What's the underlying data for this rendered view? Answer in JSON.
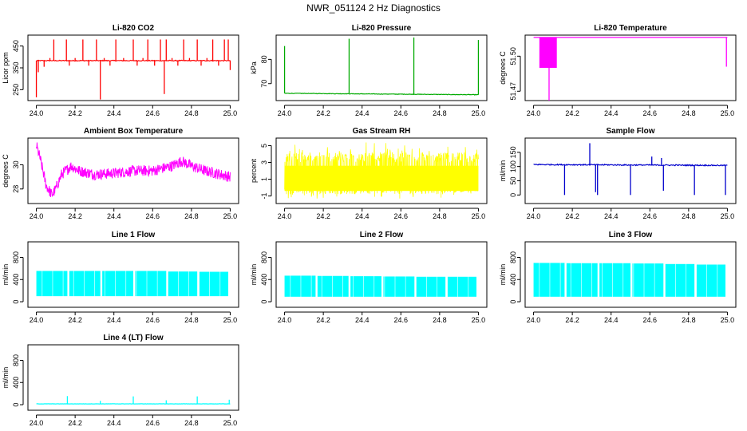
{
  "figure": {
    "title": "NWR_051124  2 Hz Diagnostics"
  },
  "chart_data": [
    {
      "id": "co2",
      "type": "line",
      "title": "Li-820 CO2",
      "ylabel": "Licor ppm",
      "xlim": [
        24.0,
        25.0
      ],
      "xticks": [
        24.0,
        24.2,
        24.4,
        24.6,
        24.8,
        25.0
      ],
      "ylim": [
        200,
        500
      ],
      "yticks": [
        250,
        350,
        450
      ],
      "color": "#ff0000",
      "baseline": 383,
      "noise": 2,
      "spikes": [
        {
          "x": 24.0,
          "v": 215
        },
        {
          "x": 24.01,
          "v": 330
        },
        {
          "x": 24.04,
          "v": 355
        },
        {
          "x": 24.07,
          "v": 395
        },
        {
          "x": 24.09,
          "v": 480
        },
        {
          "x": 24.155,
          "v": 480
        },
        {
          "x": 24.17,
          "v": 360
        },
        {
          "x": 24.2,
          "v": 395
        },
        {
          "x": 24.24,
          "v": 480
        },
        {
          "x": 24.27,
          "v": 360
        },
        {
          "x": 24.31,
          "v": 480
        },
        {
          "x": 24.33,
          "v": 205
        },
        {
          "x": 24.35,
          "v": 395
        },
        {
          "x": 24.38,
          "v": 360
        },
        {
          "x": 24.41,
          "v": 480
        },
        {
          "x": 24.45,
          "v": 395
        },
        {
          "x": 24.5,
          "v": 480
        },
        {
          "x": 24.52,
          "v": 360
        },
        {
          "x": 24.55,
          "v": 395
        },
        {
          "x": 24.575,
          "v": 480
        },
        {
          "x": 24.61,
          "v": 360
        },
        {
          "x": 24.64,
          "v": 480
        },
        {
          "x": 24.66,
          "v": 230
        },
        {
          "x": 24.67,
          "v": 480
        },
        {
          "x": 24.7,
          "v": 395
        },
        {
          "x": 24.73,
          "v": 360
        },
        {
          "x": 24.76,
          "v": 480
        },
        {
          "x": 24.79,
          "v": 395
        },
        {
          "x": 24.83,
          "v": 480
        },
        {
          "x": 24.85,
          "v": 360
        },
        {
          "x": 24.88,
          "v": 395
        },
        {
          "x": 24.91,
          "v": 480
        },
        {
          "x": 24.94,
          "v": 360
        },
        {
          "x": 24.97,
          "v": 480
        },
        {
          "x": 24.99,
          "v": 480
        },
        {
          "x": 25.0,
          "v": 340
        }
      ]
    },
    {
      "id": "pressure",
      "type": "line",
      "title": "Li-820 Pressure",
      "ylabel": "kPa",
      "xlim": [
        24.0,
        25.0
      ],
      "xticks": [
        24.0,
        24.2,
        24.4,
        24.6,
        24.8,
        25.0
      ],
      "ylim": [
        63,
        90
      ],
      "yticks": [
        70,
        80
      ],
      "color": "#00aa00",
      "baseline": 66.0,
      "baseline_end": 65.4,
      "noise": 0.1,
      "spikes": [
        {
          "x": 24.0,
          "v": 85.5
        },
        {
          "x": 24.333,
          "v": 88.5
        },
        {
          "x": 24.667,
          "v": 89.0
        },
        {
          "x": 25.0,
          "v": 88.0
        }
      ]
    },
    {
      "id": "temperature",
      "type": "line",
      "title": "Li-820 Temperature",
      "ylabel": "degrees C",
      "xlim": [
        24.0,
        25.0
      ],
      "xticks": [
        24.0,
        24.2,
        24.4,
        24.6,
        24.8,
        25.0
      ],
      "ylim": [
        51.462,
        51.518
      ],
      "yticks": [
        51.47,
        51.5
      ],
      "ytick_labels": [
        "51.47",
        "51.50"
      ],
      "color": "#ff00ff",
      "baseline": 51.516,
      "block": {
        "x0": 24.03,
        "x1": 24.12,
        "v0": 51.49,
        "v1": 51.516
      },
      "spikes": [
        {
          "x": 24.08,
          "v": 51.462
        },
        {
          "x": 24.995,
          "v": 51.491
        }
      ]
    },
    {
      "id": "box_temp",
      "type": "line",
      "title": "Ambient Box Temperature",
      "ylabel": "degrees C",
      "xlim": [
        24.0,
        25.0
      ],
      "xticks": [
        24.0,
        24.2,
        24.4,
        24.6,
        24.8,
        25.0
      ],
      "ylim": [
        26.8,
        32.2
      ],
      "yticks": [
        28,
        30
      ],
      "color": "#ff00ff",
      "curve": [
        [
          24.0,
          31.6
        ],
        [
          24.02,
          30.5
        ],
        [
          24.05,
          28.3
        ],
        [
          24.08,
          27.5
        ],
        [
          24.1,
          28.0
        ],
        [
          24.13,
          29.2
        ],
        [
          24.18,
          29.9
        ],
        [
          24.22,
          29.5
        ],
        [
          24.3,
          29.2
        ],
        [
          24.4,
          29.3
        ],
        [
          24.5,
          29.5
        ],
        [
          24.6,
          29.5
        ],
        [
          24.7,
          29.9
        ],
        [
          24.75,
          30.3
        ],
        [
          24.8,
          29.9
        ],
        [
          24.87,
          29.5
        ],
        [
          24.95,
          29.2
        ],
        [
          25.0,
          29.0
        ]
      ],
      "noise": 0.45
    },
    {
      "id": "rh",
      "type": "line",
      "title": "Gas Stream RH",
      "ylabel": "percent",
      "xlim": [
        24.0,
        25.0
      ],
      "xticks": [
        24.0,
        24.2,
        24.4,
        24.6,
        24.8,
        25.0
      ],
      "ylim": [
        -1.9,
        5.9
      ],
      "yticks": [
        -1,
        1,
        3,
        5
      ],
      "color": "#ffff00",
      "band": {
        "lo": -0.8,
        "hi": 4.2,
        "lo_min": -1.3,
        "hi_max": 5.6
      }
    },
    {
      "id": "sample_flow",
      "type": "line",
      "title": "Sample Flow",
      "ylabel": "ml/min",
      "xlim": [
        24.0,
        25.0
      ],
      "xticks": [
        24.0,
        24.2,
        24.4,
        24.6,
        24.8,
        25.0
      ],
      "ylim": [
        -30,
        200
      ],
      "yticks": [
        0,
        50,
        100,
        150
      ],
      "color": "#0000cc",
      "baseline": 107,
      "baseline_end": 104,
      "noise": 2,
      "spikes": [
        {
          "x": 24.16,
          "v": 0
        },
        {
          "x": 24.29,
          "v": 182
        },
        {
          "x": 24.32,
          "v": 10
        },
        {
          "x": 24.33,
          "v": 0
        },
        {
          "x": 24.5,
          "v": 0
        },
        {
          "x": 24.61,
          "v": 135
        },
        {
          "x": 24.66,
          "v": 130
        },
        {
          "x": 24.67,
          "v": 15
        },
        {
          "x": 24.83,
          "v": 0
        },
        {
          "x": 24.99,
          "v": 0
        }
      ]
    },
    {
      "id": "line1",
      "type": "line",
      "title": "Line 1 Flow",
      "ylabel": "ml/min",
      "xlim": [
        24.0,
        25.0
      ],
      "xticks": [
        24.0,
        24.2,
        24.4,
        24.6,
        24.8,
        25.0
      ],
      "ylim": [
        -100,
        1080
      ],
      "yticks": [
        0,
        400,
        800
      ],
      "color": "#00ffff",
      "band": {
        "lo": 100,
        "segments": [
          [
            24.0,
            24.16,
            555
          ],
          [
            24.17,
            24.33,
            555
          ],
          [
            24.34,
            24.5,
            555
          ],
          [
            24.51,
            24.67,
            555
          ],
          [
            24.68,
            24.83,
            545
          ],
          [
            24.84,
            24.99,
            540
          ]
        ]
      }
    },
    {
      "id": "line2",
      "type": "line",
      "title": "Line 2 Flow",
      "ylabel": "ml/min",
      "xlim": [
        24.0,
        25.0
      ],
      "xticks": [
        24.0,
        24.2,
        24.4,
        24.6,
        24.8,
        25.0
      ],
      "ylim": [
        -100,
        1080
      ],
      "yticks": [
        0,
        400,
        800
      ],
      "color": "#00ffff",
      "band": {
        "lo": 90,
        "segments": [
          [
            24.0,
            24.16,
            470
          ],
          [
            24.17,
            24.33,
            465
          ],
          [
            24.34,
            24.5,
            460
          ],
          [
            24.51,
            24.67,
            455
          ],
          [
            24.68,
            24.83,
            450
          ],
          [
            24.84,
            24.99,
            450
          ]
        ]
      }
    },
    {
      "id": "line3",
      "type": "line",
      "title": "Line 3 Flow",
      "ylabel": "ml/min",
      "xlim": [
        24.0,
        25.0
      ],
      "xticks": [
        24.0,
        24.2,
        24.4,
        24.6,
        24.8,
        25.0
      ],
      "ylim": [
        -100,
        1080
      ],
      "yticks": [
        0,
        400,
        800
      ],
      "color": "#00ffff",
      "band": {
        "lo": 90,
        "segments": [
          [
            24.0,
            24.16,
            700
          ],
          [
            24.17,
            24.33,
            695
          ],
          [
            24.34,
            24.5,
            695
          ],
          [
            24.51,
            24.67,
            690
          ],
          [
            24.68,
            24.83,
            680
          ],
          [
            24.84,
            24.99,
            670
          ]
        ]
      }
    },
    {
      "id": "line4",
      "type": "line",
      "title": "Line 4 (LT) Flow",
      "ylabel": "ml/min",
      "xlim": [
        24.0,
        25.0
      ],
      "xticks": [
        24.0,
        24.2,
        24.4,
        24.6,
        24.8,
        25.0
      ],
      "ylim": [
        -100,
        1080
      ],
      "yticks": [
        0,
        400,
        800
      ],
      "color": "#00ffff",
      "baseline": 15,
      "noise": 2,
      "spikes": [
        {
          "x": 24.16,
          "v": 155
        },
        {
          "x": 24.33,
          "v": 70
        },
        {
          "x": 24.5,
          "v": 150
        },
        {
          "x": 24.67,
          "v": 80
        },
        {
          "x": 24.83,
          "v": 150
        },
        {
          "x": 24.995,
          "v": 90
        }
      ]
    }
  ]
}
